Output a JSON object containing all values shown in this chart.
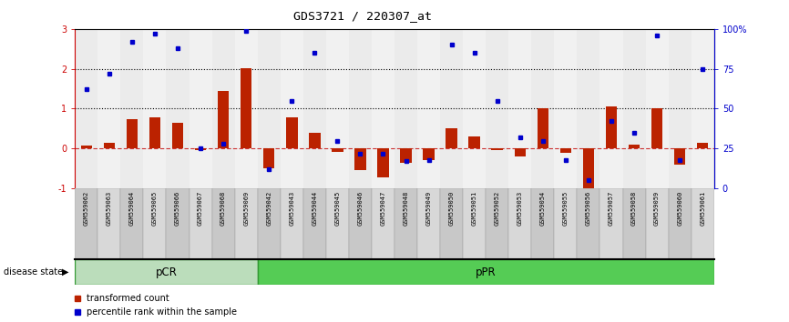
{
  "title": "GDS3721 / 220307_at",
  "samples": [
    "GSM559062",
    "GSM559063",
    "GSM559064",
    "GSM559065",
    "GSM559066",
    "GSM559067",
    "GSM559068",
    "GSM559069",
    "GSM559042",
    "GSM559043",
    "GSM559044",
    "GSM559045",
    "GSM559046",
    "GSM559047",
    "GSM559048",
    "GSM559049",
    "GSM559050",
    "GSM559051",
    "GSM559052",
    "GSM559053",
    "GSM559054",
    "GSM559055",
    "GSM559056",
    "GSM559057",
    "GSM559058",
    "GSM559059",
    "GSM559060",
    "GSM559061"
  ],
  "transformed_count": [
    0.08,
    0.14,
    0.73,
    0.78,
    0.65,
    -0.05,
    1.45,
    2.02,
    -0.5,
    0.78,
    0.4,
    -0.08,
    -0.55,
    -0.72,
    -0.35,
    -0.3,
    0.5,
    0.3,
    -0.05,
    -0.2,
    1.0,
    -0.1,
    -1.0,
    1.05,
    0.1,
    1.0,
    -0.4,
    0.15
  ],
  "percentile_rank": [
    62,
    72,
    92,
    97,
    88,
    25,
    28,
    99,
    12,
    55,
    85,
    30,
    22,
    22,
    17,
    18,
    90,
    85,
    55,
    32,
    30,
    18,
    5,
    42,
    35,
    96,
    18,
    75
  ],
  "pCR_count": 8,
  "pPR_count": 20,
  "ylim_left": [
    -1,
    3
  ],
  "ylim_right": [
    0,
    100
  ],
  "bar_color": "#bb2200",
  "dot_color": "#0000cc",
  "pCR_color": "#bbddbb",
  "pPR_color": "#55cc55",
  "tick_col_even": "#c8c8c8",
  "tick_col_odd": "#d8d8d8",
  "hline_y": [
    1,
    2
  ],
  "zero_line_color": "#cc3333",
  "left_ytick_color": "#cc0000",
  "right_ytick_color": "#0000cc"
}
